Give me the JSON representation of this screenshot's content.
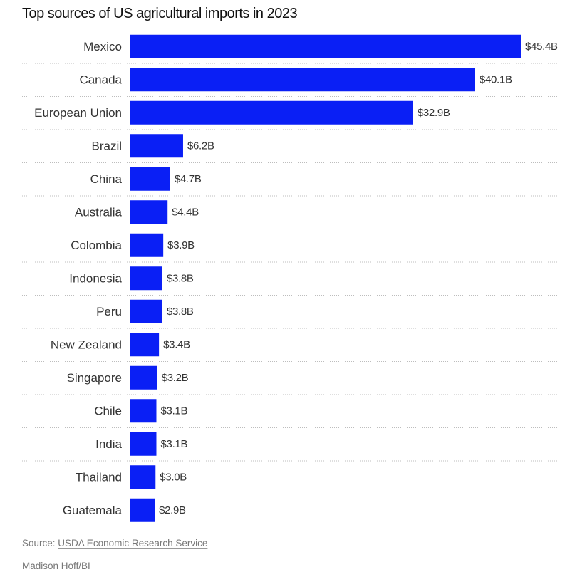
{
  "chart_data": {
    "type": "bar",
    "orientation": "horizontal",
    "title": "Top sources of US agricultural imports in 2023",
    "categories": [
      "Mexico",
      "Canada",
      "European Union",
      "Brazil",
      "China",
      "Australia",
      "Colombia",
      "Indonesia",
      "Peru",
      "New Zealand",
      "Singapore",
      "Chile",
      "India",
      "Thailand",
      "Guatemala"
    ],
    "values": [
      45.4,
      40.1,
      32.9,
      6.2,
      4.7,
      4.4,
      3.9,
      3.8,
      3.8,
      3.4,
      3.2,
      3.1,
      3.1,
      3.0,
      2.9
    ],
    "value_labels": [
      "$45.4B",
      "$40.1B",
      "$32.9B",
      "$6.2B",
      "$4.7B",
      "$4.4B",
      "$3.9B",
      "$3.8B",
      "$3.8B",
      "$3.4B",
      "$3.2B",
      "$3.1B",
      "$3.1B",
      "$3.0B",
      "$2.9B"
    ],
    "unit": "billion USD",
    "xlim": [
      0,
      45.4
    ],
    "xlabel": "",
    "ylabel": "",
    "grid": false,
    "row_separators": "dotted",
    "bar_color": "#0a1ff5"
  },
  "footer": {
    "source_prefix": "Source:",
    "source_link": "USDA Economic Research Service",
    "credit": "Madison Hoff/BI"
  }
}
